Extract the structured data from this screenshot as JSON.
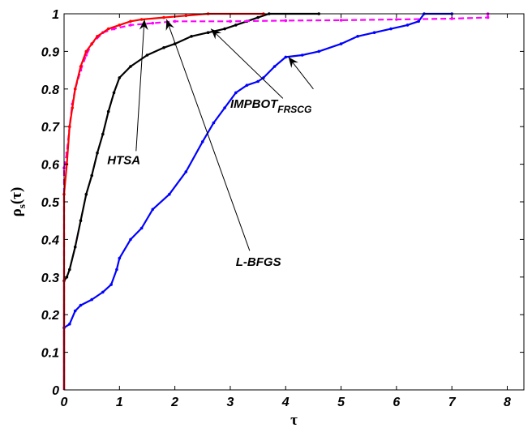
{
  "chart_data": {
    "type": "line",
    "xlabel": "τ",
    "ylabel_main": "ρ",
    "ylabel_sub": "s",
    "ylabel_tail": "(τ)",
    "xlim": [
      0,
      8.3
    ],
    "ylim": [
      0,
      1
    ],
    "xticks": [
      0,
      1,
      2,
      3,
      4,
      5,
      6,
      7,
      8
    ],
    "yticks": [
      0,
      0.1,
      0.2,
      0.3,
      0.4,
      0.5,
      0.6,
      0.7,
      0.8,
      0.9,
      1
    ],
    "grid": false,
    "series": [
      {
        "key": "HTSA",
        "color": "#ff0000",
        "style": "solid",
        "points": [
          [
            0,
            0
          ],
          [
            0,
            0.52
          ],
          [
            0.05,
            0.6
          ],
          [
            0.1,
            0.7
          ],
          [
            0.15,
            0.75
          ],
          [
            0.2,
            0.8
          ],
          [
            0.3,
            0.86
          ],
          [
            0.4,
            0.9
          ],
          [
            0.5,
            0.92
          ],
          [
            0.6,
            0.94
          ],
          [
            0.8,
            0.96
          ],
          [
            1.0,
            0.97
          ],
          [
            1.2,
            0.98
          ],
          [
            1.4,
            0.985
          ],
          [
            1.8,
            0.99
          ],
          [
            2.2,
            0.995
          ],
          [
            2.6,
            1.0
          ],
          [
            3.6,
            1.0
          ]
        ]
      },
      {
        "key": "IMPBOT_FRSCG",
        "color": "#ff00ff",
        "style": "dashed",
        "points": [
          [
            0,
            0
          ],
          [
            0,
            0.59
          ],
          [
            0.05,
            0.63
          ],
          [
            0.1,
            0.7
          ],
          [
            0.15,
            0.76
          ],
          [
            0.2,
            0.8
          ],
          [
            0.3,
            0.85
          ],
          [
            0.4,
            0.89
          ],
          [
            0.5,
            0.92
          ],
          [
            0.7,
            0.95
          ],
          [
            0.9,
            0.96
          ],
          [
            1.2,
            0.97
          ],
          [
            1.6,
            0.975
          ],
          [
            2.0,
            0.98
          ],
          [
            3.0,
            0.98
          ],
          [
            4.0,
            0.982
          ],
          [
            5.0,
            0.983
          ],
          [
            6.0,
            0.985
          ],
          [
            7.0,
            0.987
          ],
          [
            7.65,
            0.99
          ],
          [
            7.65,
            1.0
          ]
        ]
      },
      {
        "key": "Black",
        "color": "#000000",
        "style": "solid",
        "points": [
          [
            0,
            0
          ],
          [
            0,
            0.29
          ],
          [
            0.05,
            0.3
          ],
          [
            0.1,
            0.32
          ],
          [
            0.2,
            0.38
          ],
          [
            0.3,
            0.45
          ],
          [
            0.4,
            0.52
          ],
          [
            0.5,
            0.57
          ],
          [
            0.6,
            0.63
          ],
          [
            0.7,
            0.68
          ],
          [
            0.8,
            0.74
          ],
          [
            0.9,
            0.79
          ],
          [
            1.0,
            0.83
          ],
          [
            1.2,
            0.86
          ],
          [
            1.5,
            0.89
          ],
          [
            1.8,
            0.91
          ],
          [
            2.0,
            0.92
          ],
          [
            2.3,
            0.94
          ],
          [
            2.6,
            0.95
          ],
          [
            2.9,
            0.96
          ],
          [
            3.1,
            0.97
          ],
          [
            3.3,
            0.98
          ],
          [
            3.5,
            0.99
          ],
          [
            3.7,
            1.0
          ],
          [
            4.6,
            1.0
          ]
        ]
      },
      {
        "key": "L-BFGS",
        "color": "#0000ff",
        "style": "solid",
        "points": [
          [
            0,
            0
          ],
          [
            0,
            0.165
          ],
          [
            0.1,
            0.175
          ],
          [
            0.2,
            0.21
          ],
          [
            0.3,
            0.225
          ],
          [
            0.5,
            0.24
          ],
          [
            0.7,
            0.26
          ],
          [
            0.85,
            0.28
          ],
          [
            0.95,
            0.32
          ],
          [
            1.0,
            0.35
          ],
          [
            1.2,
            0.4
          ],
          [
            1.4,
            0.43
          ],
          [
            1.6,
            0.48
          ],
          [
            1.9,
            0.52
          ],
          [
            2.2,
            0.58
          ],
          [
            2.5,
            0.66
          ],
          [
            2.7,
            0.71
          ],
          [
            2.9,
            0.75
          ],
          [
            3.1,
            0.79
          ],
          [
            3.3,
            0.81
          ],
          [
            3.5,
            0.82
          ],
          [
            3.6,
            0.83
          ],
          [
            3.8,
            0.86
          ],
          [
            4.0,
            0.885
          ],
          [
            4.3,
            0.89
          ],
          [
            4.6,
            0.9
          ],
          [
            5.0,
            0.92
          ],
          [
            5.3,
            0.94
          ],
          [
            5.6,
            0.95
          ],
          [
            5.9,
            0.96
          ],
          [
            6.2,
            0.97
          ],
          [
            6.4,
            0.98
          ],
          [
            6.5,
            1.0
          ],
          [
            7.0,
            1.0
          ]
        ]
      }
    ],
    "annotations": [
      {
        "key": "HTSA",
        "text": "HTSA",
        "sub": "",
        "label_at": [
          0.78,
          0.6
        ],
        "arrow_from": [
          1.3,
          0.635
        ],
        "arrow_to": [
          1.45,
          0.985
        ]
      },
      {
        "key": "IMPBOT",
        "text": "IMPBOT",
        "sub": "FRSCG",
        "label_at": [
          3.0,
          0.75
        ],
        "arrow_from": [
          3.95,
          0.775
        ],
        "arrow_to": [
          2.65,
          0.96
        ]
      },
      {
        "key": "LBFGS",
        "text": "L-BFGS",
        "sub": "",
        "label_at": [
          3.1,
          0.33
        ],
        "arrow_from": [
          3.35,
          0.37
        ],
        "arrow_to": [
          1.85,
          0.985
        ]
      },
      {
        "key": "LBFGS2",
        "text": "",
        "sub": "",
        "label_at": [
          4.5,
          0.75
        ],
        "arrow_from": [
          4.5,
          0.8
        ],
        "arrow_to": [
          4.05,
          0.885
        ]
      }
    ]
  }
}
